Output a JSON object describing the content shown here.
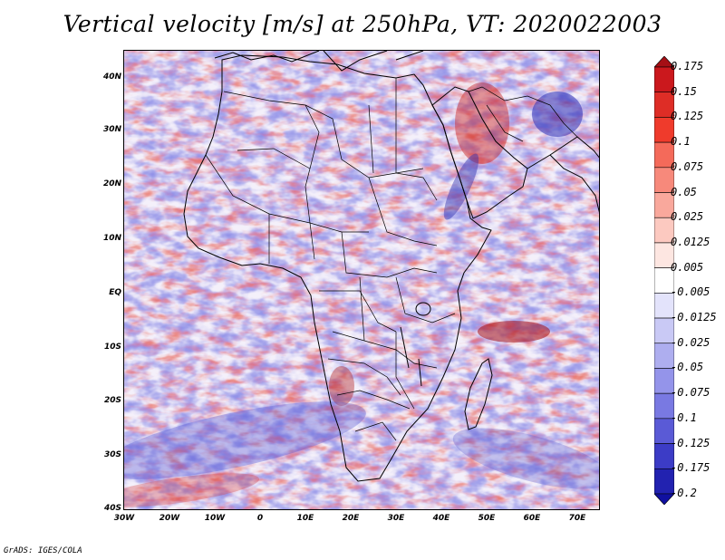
{
  "title": "Vertical velocity [m/s] at 250hPa, VT: 2020022003",
  "credit": "GrADS: IGES/COLA",
  "map": {
    "lat_range": [
      -40,
      45
    ],
    "lon_range": [
      -30,
      75
    ],
    "lat_ticks": [
      "40N",
      "30N",
      "20N",
      "10N",
      "EQ",
      "10S",
      "20S",
      "30S",
      "40S"
    ],
    "lon_ticks": [
      "30W",
      "20W",
      "10W",
      "0",
      "10E",
      "20E",
      "30E",
      "40E",
      "50E",
      "60E",
      "70E"
    ]
  },
  "colorbar": {
    "levels": [
      "0.175",
      "0.15",
      "0.125",
      "0.1",
      "0.075",
      "0.05",
      "0.025",
      "0.0125",
      "0.005",
      "-0.005",
      "-0.0125",
      "-0.025",
      "-0.05",
      "-0.075",
      "-0.1",
      "-0.125",
      "-0.175",
      "-0.2"
    ],
    "colors": [
      "#a50f15",
      "#cb181d",
      "#de2d26",
      "#ef3b2c",
      "#f46a5a",
      "#f7897b",
      "#f9a89c",
      "#fcc9c0",
      "#fde6e1",
      "#ffffff",
      "#e3e3fb",
      "#c9c9f5",
      "#aeaeef",
      "#9494ea",
      "#7979e2",
      "#5a5ad6",
      "#3c3cc6",
      "#2222b0",
      "#1010a0"
    ]
  }
}
